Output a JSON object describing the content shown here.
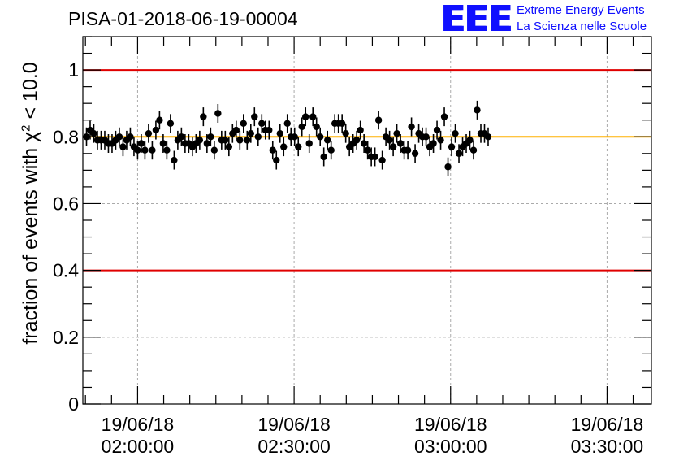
{
  "title": "PISA-01-2018-06-19-00004",
  "logo": {
    "mark": "EEE",
    "line1": "Extreme Energy Events",
    "line2": "La Scienza nelle Scuole",
    "color": "#1010ff"
  },
  "chart_data": {
    "type": "scatter",
    "title": "PISA-01-2018-06-19-00004",
    "xlabel": "",
    "ylabel_parts": {
      "prefix": "fraction of events with ",
      "symbol": "χ",
      "exponent": "2",
      "suffix": " < 10.0"
    },
    "ylim": [
      0,
      1.1
    ],
    "xlim_minutes": [
      -10.5,
      98.5
    ],
    "y_ticks": [
      "0",
      "0.2",
      "0.4",
      "0.6",
      "0.8",
      "1"
    ],
    "y_tick_values": [
      0,
      0.2,
      0.4,
      0.6,
      0.8,
      1.0
    ],
    "x_ticks": [
      {
        "minutes": 0,
        "date": "19/06/18",
        "time": "02:00:00"
      },
      {
        "minutes": 30,
        "date": "19/06/18",
        "time": "02:30:00"
      },
      {
        "minutes": 60,
        "date": "19/06/18",
        "time": "03:00:00"
      },
      {
        "minutes": 90,
        "date": "19/06/18",
        "time": "03:30:00"
      }
    ],
    "grid": true,
    "reference_lines": [
      {
        "y": 1.0,
        "color": "#e00000"
      },
      {
        "y": 0.4,
        "color": "#e00000"
      },
      {
        "y": 0.8,
        "color": "#ffb000"
      }
    ],
    "x_start_minutes": -9.8,
    "x_step_minutes": 0.7,
    "y_error": 0.028,
    "values": [
      0.8,
      0.82,
      0.81,
      0.79,
      0.79,
      0.79,
      0.78,
      0.78,
      0.79,
      0.8,
      0.77,
      0.79,
      0.8,
      0.77,
      0.76,
      0.78,
      0.76,
      0.81,
      0.76,
      0.82,
      0.85,
      0.78,
      0.76,
      0.84,
      0.73,
      0.79,
      0.8,
      0.78,
      0.78,
      0.77,
      0.78,
      0.79,
      0.86,
      0.78,
      0.8,
      0.76,
      0.87,
      0.79,
      0.79,
      0.77,
      0.81,
      0.82,
      0.79,
      0.84,
      0.79,
      0.81,
      0.86,
      0.8,
      0.84,
      0.82,
      0.82,
      0.76,
      0.73,
      0.81,
      0.77,
      0.84,
      0.8,
      0.8,
      0.77,
      0.83,
      0.86,
      0.78,
      0.86,
      0.83,
      0.8,
      0.74,
      0.79,
      0.76,
      0.84,
      0.84,
      0.84,
      0.81,
      0.77,
      0.78,
      0.79,
      0.82,
      0.78,
      0.76,
      0.74,
      0.74,
      0.85,
      0.73,
      0.8,
      0.79,
      0.77,
      0.81,
      0.78,
      0.76,
      0.76,
      0.83,
      0.75,
      0.81,
      0.8,
      0.8,
      0.77,
      0.78,
      0.82,
      0.79,
      0.86,
      0.71,
      0.77,
      0.81,
      0.75,
      0.77,
      0.78,
      0.79,
      0.76,
      0.88,
      0.81,
      0.81,
      0.8
    ]
  }
}
